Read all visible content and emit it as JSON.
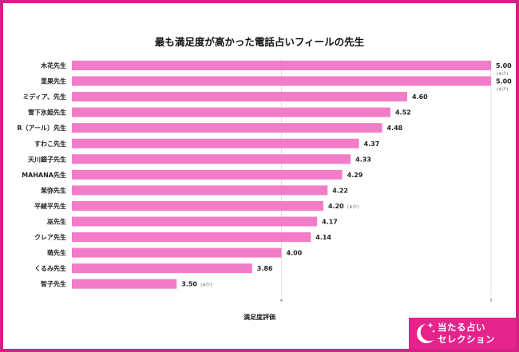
{
  "chart_data": {
    "type": "bar",
    "orientation": "horizontal",
    "title": "最も満足度が高かった電話占いフィールの先生",
    "xlabel": "満足度評価",
    "ylabel": "",
    "xlim": [
      3,
      5
    ],
    "xticks": [
      "4",
      "5"
    ],
    "grid": true,
    "color": "#f27cc8",
    "categories": [
      "木花先生",
      "里果先生",
      "ミディア、先生",
      "雪下氷姫先生",
      "R（アール）先生",
      "すわこ先生",
      "天川銀子先生",
      "MAHANA先生",
      "茉弥先生",
      "平綾平先生",
      "巫先生",
      "クレア先生",
      "萌先生",
      "くるみ先生",
      "智子先生"
    ],
    "values": [
      5.0,
      5.0,
      4.6,
      4.52,
      4.48,
      4.37,
      4.33,
      4.29,
      4.22,
      4.2,
      4.17,
      4.14,
      4.0,
      3.86,
      3.5
    ],
    "value_labels": [
      "5.00",
      "5.00",
      "4.60",
      "4.52",
      "4.48",
      "4.37",
      "4.33",
      "4.29",
      "4.22",
      "4.20",
      "4.17",
      "4.14",
      "4.00",
      "3.86",
      "3.50"
    ],
    "notes": [
      "(※少)",
      "(※少)",
      "",
      "",
      "",
      "",
      "",
      "",
      "",
      "(※少)",
      "",
      "",
      "",
      "",
      "(※少)"
    ]
  },
  "brand": {
    "line1": "当たる占い",
    "line2": "セレクション"
  }
}
